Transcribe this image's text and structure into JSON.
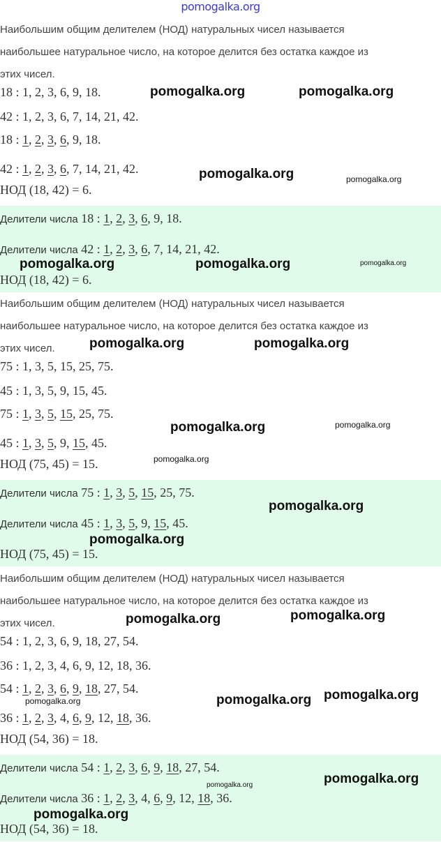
{
  "header_watermark": "pomogalka.org",
  "colors": {
    "box_bg": "#e0fbe9",
    "header_watermark": "#3a3ad8"
  },
  "sections": [
    {
      "definition": [
        "Наибольшим общим делителем (НОД) натуральных чисел называется",
        "наибольшее натуральное число, на которое делится без остатка каждое из",
        "этих чисел."
      ],
      "lists": [
        {
          "num": "18",
          "divisors": [
            {
              "v": "1",
              "u": false
            },
            {
              "v": "2",
              "u": false
            },
            {
              "v": "3",
              "u": false
            },
            {
              "v": "6",
              "u": false
            },
            {
              "v": "9",
              "u": false
            },
            {
              "v": "18",
              "u": false
            }
          ]
        },
        {
          "num": "42",
          "divisors": [
            {
              "v": "1",
              "u": false
            },
            {
              "v": "2",
              "u": false
            },
            {
              "v": "3",
              "u": false
            },
            {
              "v": "6",
              "u": false
            },
            {
              "v": "7",
              "u": false
            },
            {
              "v": "14",
              "u": false
            },
            {
              "v": "21",
              "u": false
            },
            {
              "v": "42",
              "u": false
            }
          ]
        },
        {
          "num": "18",
          "divisors": [
            {
              "v": "1",
              "u": true
            },
            {
              "v": "2",
              "u": true
            },
            {
              "v": "3",
              "u": true
            },
            {
              "v": "6",
              "u": true
            },
            {
              "v": "9",
              "u": false
            },
            {
              "v": "18",
              "u": false
            }
          ]
        },
        {
          "num": "42",
          "divisors": [
            {
              "v": "1",
              "u": true
            },
            {
              "v": "2",
              "u": true
            },
            {
              "v": "3",
              "u": true
            },
            {
              "v": "6",
              "u": true
            },
            {
              "v": "7",
              "u": false
            },
            {
              "v": "14",
              "u": false
            },
            {
              "v": "21",
              "u": false
            },
            {
              "v": "42",
              "u": false
            }
          ]
        }
      ],
      "gcd": "НОД (18, 42) = 6.",
      "box": {
        "lists": [
          {
            "prefix": "Делители числа",
            "num": "18",
            "divisors": [
              {
                "v": "1",
                "u": true
              },
              {
                "v": "2",
                "u": true
              },
              {
                "v": "3",
                "u": true
              },
              {
                "v": "6",
                "u": true
              },
              {
                "v": "9",
                "u": false
              },
              {
                "v": "18",
                "u": false
              }
            ]
          },
          {
            "prefix": "Делители числа",
            "num": "42",
            "divisors": [
              {
                "v": "1",
                "u": true
              },
              {
                "v": "2",
                "u": true
              },
              {
                "v": "3",
                "u": true
              },
              {
                "v": "6",
                "u": true
              },
              {
                "v": "7",
                "u": false
              },
              {
                "v": "14",
                "u": false
              },
              {
                "v": "21",
                "u": false
              },
              {
                "v": "42",
                "u": false
              }
            ]
          }
        ],
        "gcd": "НОД (18, 42) = 6."
      }
    },
    {
      "definition": [
        "Наибольшим общим делителем (НОД) натуральных чисел называется",
        "наибольшее натуральное число, на которое делится без остатка каждое из",
        "этих чисел."
      ],
      "lists": [
        {
          "num": "75",
          "divisors": [
            {
              "v": "1",
              "u": false
            },
            {
              "v": "3",
              "u": false
            },
            {
              "v": "5",
              "u": false
            },
            {
              "v": "15",
              "u": false
            },
            {
              "v": "25",
              "u": false
            },
            {
              "v": "75",
              "u": false
            }
          ]
        },
        {
          "num": "45",
          "divisors": [
            {
              "v": "1",
              "u": false
            },
            {
              "v": "3",
              "u": false
            },
            {
              "v": "5",
              "u": false
            },
            {
              "v": "9",
              "u": false
            },
            {
              "v": "15",
              "u": false
            },
            {
              "v": "45",
              "u": false
            }
          ]
        },
        {
          "num": "75",
          "divisors": [
            {
              "v": "1",
              "u": true
            },
            {
              "v": "3",
              "u": true
            },
            {
              "v": "5",
              "u": true
            },
            {
              "v": "15",
              "u": true
            },
            {
              "v": "25",
              "u": false
            },
            {
              "v": "75",
              "u": false
            }
          ]
        },
        {
          "num": "45",
          "divisors": [
            {
              "v": "1",
              "u": true
            },
            {
              "v": "3",
              "u": true
            },
            {
              "v": "5",
              "u": true
            },
            {
              "v": "9",
              "u": false
            },
            {
              "v": "15",
              "u": true
            },
            {
              "v": "45",
              "u": false
            }
          ]
        }
      ],
      "gcd": "НОД (75, 45) = 15.",
      "box": {
        "lists": [
          {
            "prefix": "Делители числа",
            "num": "75",
            "divisors": [
              {
                "v": "1",
                "u": true
              },
              {
                "v": "3",
                "u": true
              },
              {
                "v": "5",
                "u": true
              },
              {
                "v": "15",
                "u": true
              },
              {
                "v": "25",
                "u": false
              },
              {
                "v": "75",
                "u": false
              }
            ]
          },
          {
            "prefix": "Делители числа",
            "num": "45",
            "divisors": [
              {
                "v": "1",
                "u": true
              },
              {
                "v": "3",
                "u": true
              },
              {
                "v": "5",
                "u": true
              },
              {
                "v": "9",
                "u": false
              },
              {
                "v": "15",
                "u": true
              },
              {
                "v": "45",
                "u": false
              }
            ]
          }
        ],
        "gcd": "НОД (75, 45) = 15."
      }
    },
    {
      "definition": [
        "Наибольшим общим делителем (НОД) натуральных чисел называется",
        "наибольшее натуральное число, на которое делится без остатка каждое из",
        "этих чисел."
      ],
      "lists": [
        {
          "num": "54",
          "divisors": [
            {
              "v": "1",
              "u": false
            },
            {
              "v": "2",
              "u": false
            },
            {
              "v": "3",
              "u": false
            },
            {
              "v": "6",
              "u": false
            },
            {
              "v": "9",
              "u": false
            },
            {
              "v": "18",
              "u": false
            },
            {
              "v": "27",
              "u": false
            },
            {
              "v": "54",
              "u": false
            }
          ]
        },
        {
          "num": "36",
          "divisors": [
            {
              "v": "1",
              "u": false
            },
            {
              "v": "2",
              "u": false
            },
            {
              "v": "3",
              "u": false
            },
            {
              "v": "4",
              "u": false
            },
            {
              "v": "6",
              "u": false
            },
            {
              "v": "9",
              "u": false
            },
            {
              "v": "12",
              "u": false
            },
            {
              "v": "18",
              "u": false
            },
            {
              "v": "36",
              "u": false
            }
          ]
        },
        {
          "num": "54",
          "divisors": [
            {
              "v": "1",
              "u": true
            },
            {
              "v": "2",
              "u": true
            },
            {
              "v": "3",
              "u": true
            },
            {
              "v": "6",
              "u": true
            },
            {
              "v": "9",
              "u": true
            },
            {
              "v": "18",
              "u": true
            },
            {
              "v": "27",
              "u": false
            },
            {
              "v": "54",
              "u": false
            }
          ]
        },
        {
          "num": "36",
          "divisors": [
            {
              "v": "1",
              "u": true
            },
            {
              "v": "2",
              "u": true
            },
            {
              "v": "3",
              "u": true
            },
            {
              "v": "4",
              "u": false
            },
            {
              "v": "6",
              "u": true
            },
            {
              "v": "9",
              "u": true
            },
            {
              "v": "12",
              "u": false
            },
            {
              "v": "18",
              "u": true
            },
            {
              "v": "36",
              "u": false
            }
          ]
        }
      ],
      "gcd": "НОД (54, 36) = 18.",
      "box": {
        "lists": [
          {
            "prefix": "Делители числа",
            "num": "54",
            "divisors": [
              {
                "v": "1",
                "u": true
              },
              {
                "v": "2",
                "u": true
              },
              {
                "v": "3",
                "u": true
              },
              {
                "v": "6",
                "u": true
              },
              {
                "v": "9",
                "u": true
              },
              {
                "v": "18",
                "u": true
              },
              {
                "v": "27",
                "u": false
              },
              {
                "v": "54",
                "u": false
              }
            ]
          },
          {
            "prefix": "Делители числа",
            "num": "36",
            "divisors": [
              {
                "v": "1",
                "u": true
              },
              {
                "v": "2",
                "u": true
              },
              {
                "v": "3",
                "u": true
              },
              {
                "v": "4",
                "u": false
              },
              {
                "v": "6",
                "u": true
              },
              {
                "v": "9",
                "u": true
              },
              {
                "v": "12",
                "u": false
              },
              {
                "v": "18",
                "u": true
              },
              {
                "v": "36",
                "u": false
              }
            ]
          }
        ],
        "gcd": "НОД (54, 36) = 18."
      }
    }
  ],
  "watermarks": [
    {
      "text": "pomogalka.org",
      "size": "big"
    },
    {
      "text": "pomogalka.org",
      "size": "big"
    },
    {
      "text": "pomogalka.org",
      "size": "big"
    },
    {
      "text": "pomogalka.org",
      "size": "small"
    },
    {
      "text": "pomogalka.org",
      "size": "big"
    },
    {
      "text": "pomogalka.org",
      "size": "big"
    },
    {
      "text": "pomogalka.org",
      "size": "tiny"
    },
    {
      "text": "pomogalka.org",
      "size": "big"
    },
    {
      "text": "pomogalka.org",
      "size": "big"
    },
    {
      "text": "pomogalka.org",
      "size": "big"
    },
    {
      "text": "pomogalka.org",
      "size": "small"
    },
    {
      "text": "pomogalka.org",
      "size": "small"
    },
    {
      "text": "pomogalka.org",
      "size": "big"
    },
    {
      "text": "pomogalka.org",
      "size": "big"
    },
    {
      "text": "pomogalka.org",
      "size": "big"
    },
    {
      "text": "pomogalka.org",
      "size": "big"
    },
    {
      "text": "pomogalka.org",
      "size": "big"
    },
    {
      "text": "pomogalka.org",
      "size": "small"
    },
    {
      "text": "pomogalka.org",
      "size": "big"
    },
    {
      "text": "pomogalka.org",
      "size": "tiny"
    },
    {
      "text": "pomogalka.org",
      "size": "big"
    },
    {
      "text": "pomogalka.org",
      "size": "big"
    }
  ]
}
